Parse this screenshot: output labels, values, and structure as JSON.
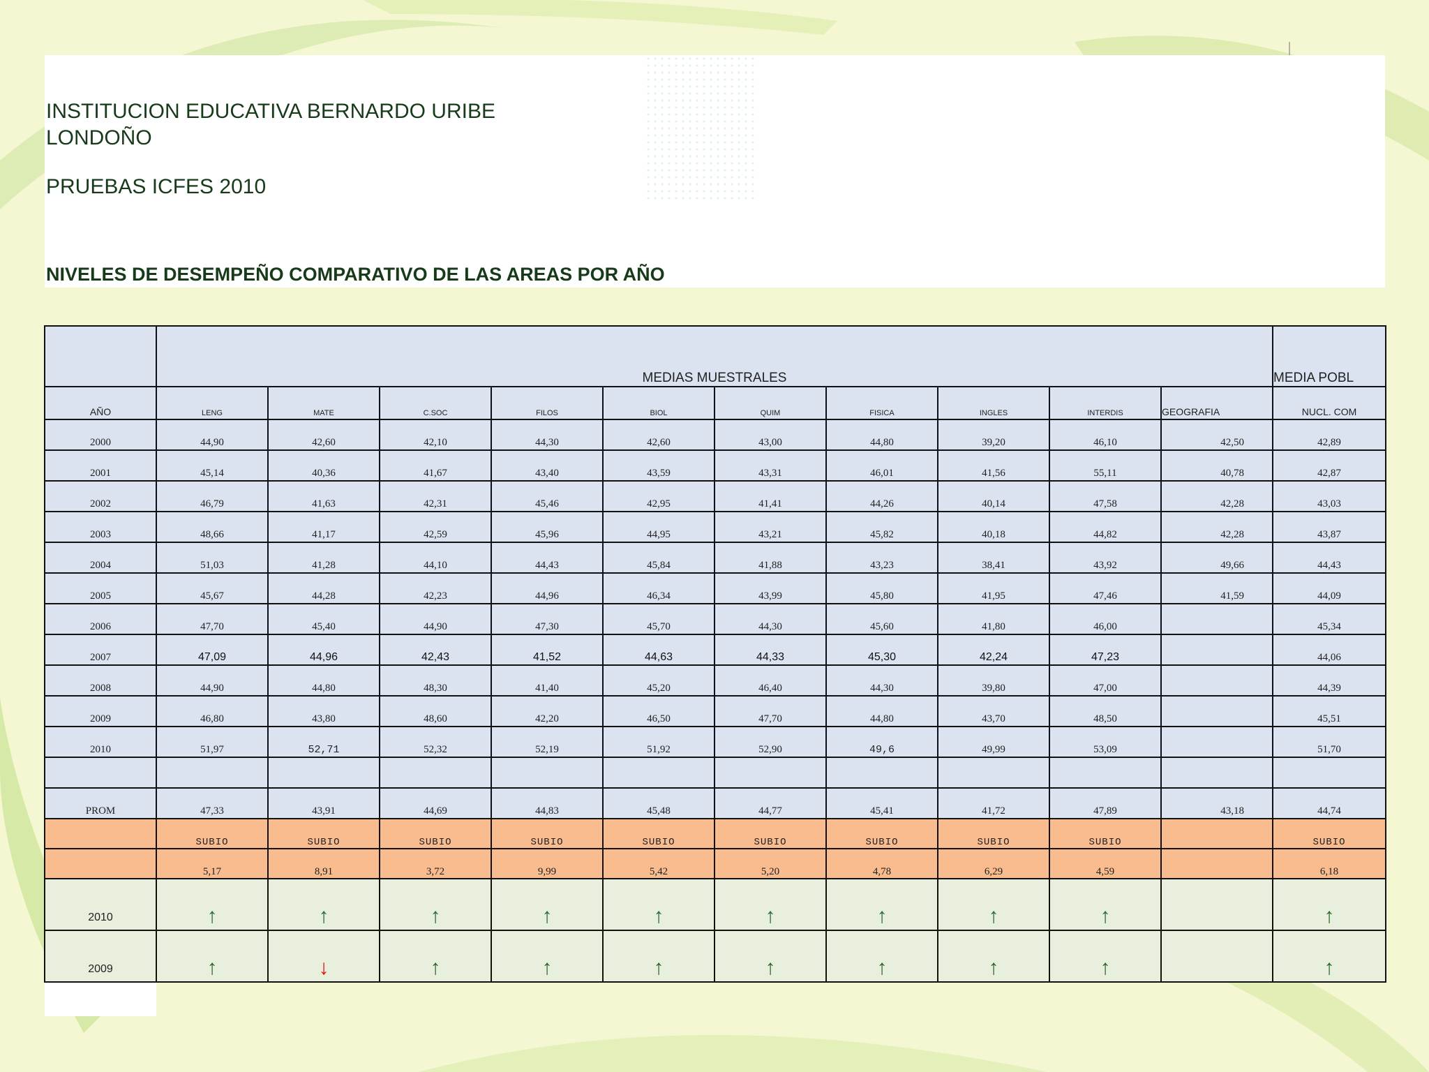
{
  "header": {
    "title_line1": "INSTITUCION EDUCATIVA BERNARDO URIBE",
    "title_line2": "LONDOÑO",
    "subtitle": "PRUEBAS ICFES 2010",
    "heading": "NIVELES DE DESEMPEÑO COMPARATIVO DE LAS AREAS POR AÑO"
  },
  "table": {
    "group_label": "MEDIAS MUESTRALES",
    "pop_label": "MEDIA POBL",
    "year_header": "AÑO",
    "columns": [
      "LENG",
      "MATE",
      "C.SOC",
      "FILOS",
      "BIOL",
      "QUIM",
      "FISICA",
      "INGLES",
      "INTERDIS",
      "GEOGRAFIA",
      "NUCL. COM"
    ],
    "rows": [
      {
        "year": "2000",
        "values": [
          "44,90",
          "42,60",
          "42,10",
          "44,30",
          "42,60",
          "43,00",
          "44,80",
          "39,20",
          "46,10",
          "42,50",
          "42,89"
        ]
      },
      {
        "year": "2001",
        "values": [
          "45,14",
          "40,36",
          "41,67",
          "43,40",
          "43,59",
          "43,31",
          "46,01",
          "41,56",
          "55,11",
          "40,78",
          "42,87"
        ]
      },
      {
        "year": "2002",
        "values": [
          "46,79",
          "41,63",
          "42,31",
          "45,46",
          "42,95",
          "41,41",
          "44,26",
          "40,14",
          "47,58",
          "42,28",
          "43,03"
        ]
      },
      {
        "year": "2003",
        "values": [
          "48,66",
          "41,17",
          "42,59",
          "45,96",
          "44,95",
          "43,21",
          "45,82",
          "40,18",
          "44,82",
          "42,28",
          "43,87"
        ]
      },
      {
        "year": "2004",
        "values": [
          "51,03",
          "41,28",
          "44,10",
          "44,43",
          "45,84",
          "41,88",
          "43,23",
          "38,41",
          "43,92",
          "49,66",
          "44,43"
        ]
      },
      {
        "year": "2005",
        "values": [
          "45,67",
          "44,28",
          "42,23",
          "44,96",
          "46,34",
          "43,99",
          "45,80",
          "41,95",
          "47,46",
          "41,59",
          "44,09"
        ]
      },
      {
        "year": "2006",
        "values": [
          "47,70",
          "45,40",
          "44,90",
          "47,30",
          "45,70",
          "44,30",
          "45,60",
          "41,80",
          "46,00",
          "",
          "45,34"
        ]
      },
      {
        "year": "2007",
        "values": [
          "47,09",
          "44,96",
          "42,43",
          "41,52",
          "44,63",
          "44,33",
          "45,30",
          "42,24",
          "47,23",
          "",
          "44,06"
        ]
      },
      {
        "year": "2008",
        "values": [
          "44,90",
          "44,80",
          "48,30",
          "41,40",
          "45,20",
          "46,40",
          "44,30",
          "39,80",
          "47,00",
          "",
          "44,39"
        ]
      },
      {
        "year": "2009",
        "values": [
          "46,80",
          "43,80",
          "48,60",
          "42,20",
          "46,50",
          "47,70",
          "44,80",
          "43,70",
          "48,50",
          "",
          "45,51"
        ]
      },
      {
        "year": "2010",
        "values": [
          "51,97",
          "52,71",
          "52,32",
          "52,19",
          "51,92",
          "52,90",
          "49,6",
          "49,99",
          "53,09",
          "",
          "51,70"
        ]
      }
    ],
    "prom": {
      "label": "PROM",
      "values": [
        "47,33",
        "43,91",
        "44,69",
        "44,83",
        "45,48",
        "44,77",
        "45,41",
        "41,72",
        "47,89",
        "43,18",
        "44,74"
      ]
    },
    "status": [
      "SUBIO",
      "SUBIO",
      "SUBIO",
      "SUBIO",
      "SUBIO",
      "SUBIO",
      "SUBIO",
      "SUBIO",
      "SUBIO",
      "",
      "SUBIO"
    ],
    "diff": [
      "5,17",
      "8,91",
      "3,72",
      "9,99",
      "5,42",
      "5,20",
      "4,78",
      "6,29",
      "4,59",
      "",
      "6,18"
    ],
    "trend_2010": {
      "label": "2010",
      "arrows": [
        "↑",
        "↑",
        "↑",
        "↑",
        "↑",
        "↑",
        "↑",
        "↑",
        "↑",
        "",
        "↑"
      ]
    },
    "trend_2009": {
      "label": "2009",
      "arrows": [
        "↑",
        "↓",
        "↑",
        "↑",
        "↑",
        "↑",
        "↑",
        "↑",
        "↑",
        "",
        "↑"
      ]
    }
  },
  "colors": {
    "header_cells": "#dbe3f0",
    "orange_rows": "#f8bc8e",
    "trend_rows": "#e9efdd",
    "arrow_up": "#2a6b2a",
    "arrow_down": "#e01010"
  }
}
